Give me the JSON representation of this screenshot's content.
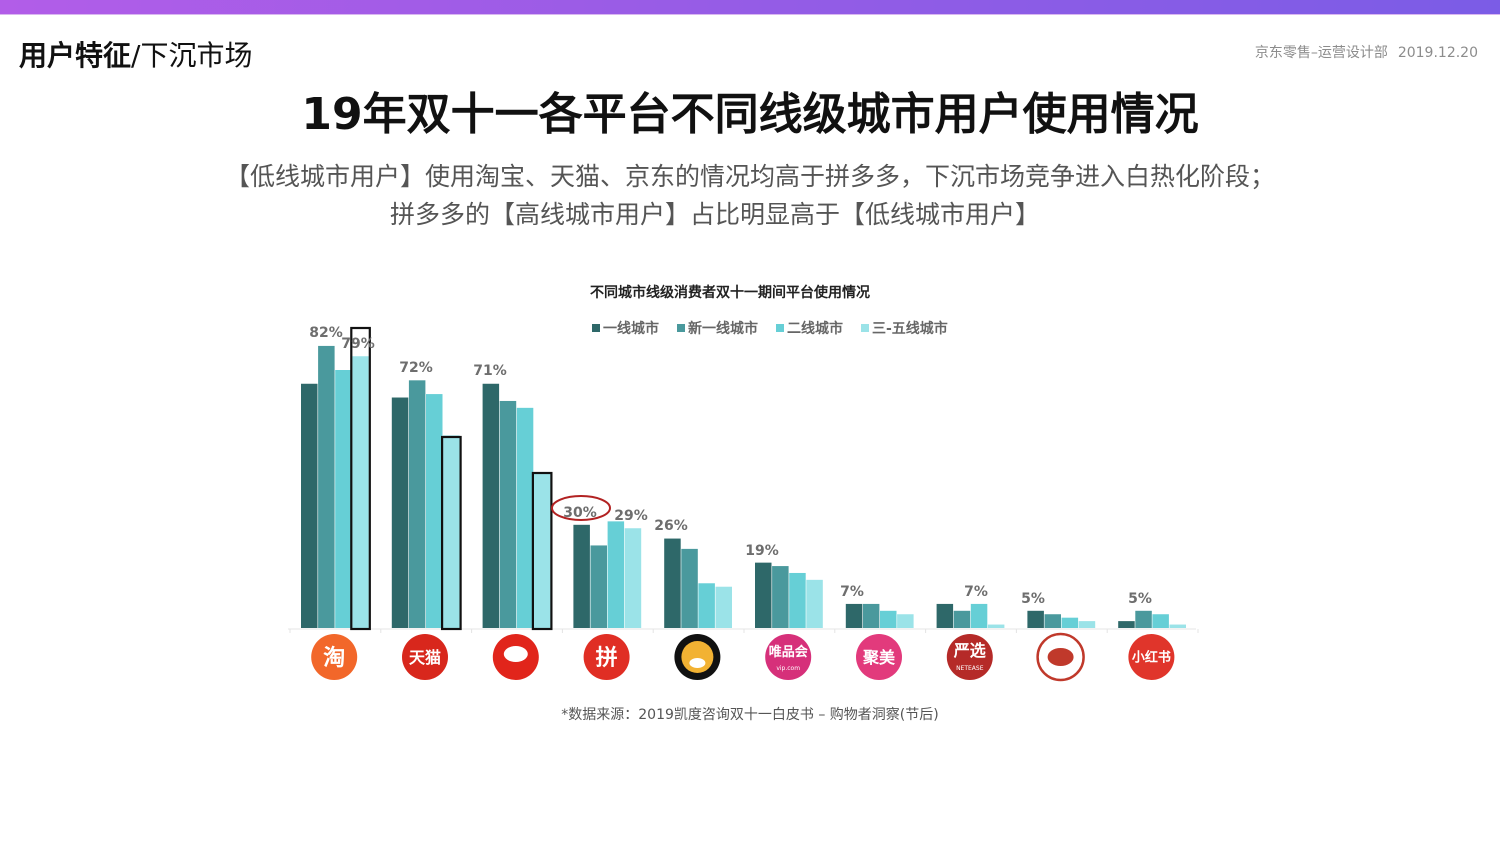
{
  "header": {
    "section_bold": "用户特征",
    "section_rest": "/下沉市场",
    "org": "京东零售–运营设计部",
    "date": "2019.12.20"
  },
  "main_title": "19年双十一各平台不同线级城市用户使用情况",
  "subtitle": {
    "line1": "【低线城市用户】使用淘宝、天猫、京东的情况均高于拼多多，下沉市场竞争进入白热化阶段；",
    "line2": "拼多多的【高线城市用户】占比明显高于【低线城市用户】"
  },
  "source_note": "*数据来源：2019凯度咨询双十一白皮书 – 购物者洞察(节后)",
  "colors": {
    "top_gradient_start": "#b25de8",
    "top_gradient_end": "#7b5ce6",
    "series": [
      "#2e6869",
      "#4a999d",
      "#66cfd6",
      "#9be3e8"
    ],
    "highlight_box": "#111111",
    "highlight_circle": "#b22222"
  },
  "chart_data": {
    "type": "bar",
    "title": "不同城市线级消费者双十一期间平台使用情况",
    "xlabel": "",
    "ylabel": "",
    "ylim": [
      0,
      85
    ],
    "grid": false,
    "legend_position": "top",
    "categories": [
      "淘宝",
      "天猫",
      "京东",
      "拼多多",
      "苏宁易购",
      "唯品会",
      "聚美",
      "网易严选",
      "考拉",
      "小红书"
    ],
    "category_icons": [
      {
        "name": "taobao-logo-icon",
        "text": "淘",
        "bg": "#f2672a"
      },
      {
        "name": "tmall-logo-icon",
        "text": "天猫",
        "bg": "#d8271c"
      },
      {
        "name": "jd-logo-icon",
        "text": "",
        "bg": "#e1251b"
      },
      {
        "name": "pinduoduo-logo-icon",
        "text": "拼",
        "bg": "#e02e24"
      },
      {
        "name": "suning-logo-icon",
        "text": "",
        "bg": "#111111"
      },
      {
        "name": "vip-logo-icon",
        "text": "唯品会",
        "subtext": "vip.com",
        "bg": "#d6307a"
      },
      {
        "name": "jumei-logo-icon",
        "text": "聚美",
        "bg": "#e23a7c"
      },
      {
        "name": "yanxuan-logo-icon",
        "text": "严选",
        "subtext": "NETEASE",
        "bg": "#b52a28"
      },
      {
        "name": "kaola-logo-icon",
        "text": "",
        "bg": "#ffffff"
      },
      {
        "name": "xiaohongshu-logo-icon",
        "text": "小红书",
        "bg": "#e0352b"
      }
    ],
    "series": [
      {
        "name": "一线城市",
        "values": [
          71,
          67,
          71,
          30,
          26,
          19,
          7,
          7,
          5,
          2
        ]
      },
      {
        "name": "新一线城市",
        "values": [
          82,
          72,
          66,
          24,
          23,
          18,
          7,
          5,
          4,
          5
        ]
      },
      {
        "name": "二线城市",
        "values": [
          75,
          68,
          64,
          31,
          13,
          16,
          5,
          7,
          3,
          4
        ]
      },
      {
        "name": "三-五线城市",
        "values": [
          79,
          56,
          45,
          29,
          12,
          14,
          4,
          1,
          2,
          1
        ]
      }
    ],
    "data_labels": [
      {
        "category": 0,
        "text": "82%"
      },
      {
        "category": 0,
        "text": "79%"
      },
      {
        "category": 1,
        "text": "72%"
      },
      {
        "category": 2,
        "text": "71%"
      },
      {
        "category": 3,
        "text": "30%"
      },
      {
        "category": 3,
        "text": "29%"
      },
      {
        "category": 4,
        "text": "26%"
      },
      {
        "category": 5,
        "text": "19%"
      },
      {
        "category": 6,
        "text": "7%"
      },
      {
        "category": 7,
        "text": "7%"
      },
      {
        "category": 8,
        "text": "5%"
      },
      {
        "category": 9,
        "text": "5%"
      }
    ],
    "highlights": [
      {
        "type": "box",
        "category": 0,
        "series": 3
      },
      {
        "type": "box",
        "category": 1,
        "series": 3
      },
      {
        "type": "box",
        "category": 2,
        "series": 3
      },
      {
        "type": "circle",
        "category": 3,
        "label_text": "30%"
      }
    ]
  }
}
